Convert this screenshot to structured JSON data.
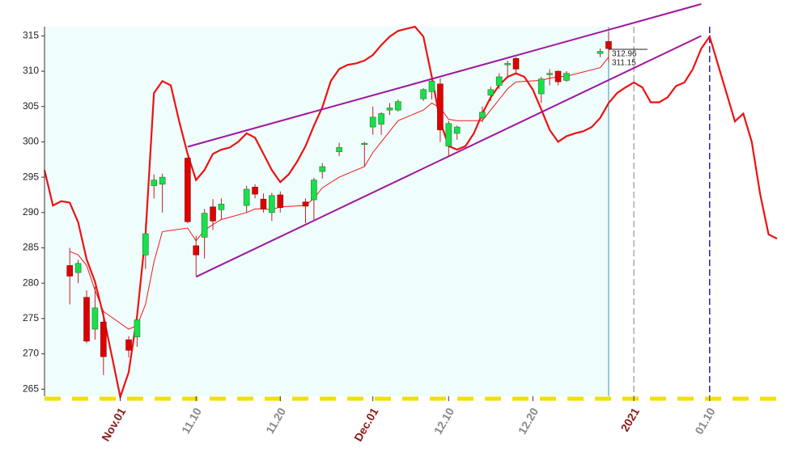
{
  "chart_data": {
    "type": "candlestick",
    "x": [
      "10.26",
      "10.27",
      "10.28",
      "10.29",
      "10.30",
      "11.02",
      "11.03",
      "11.04",
      "11.05",
      "11.06",
      "11.09",
      "11.10",
      "11.11",
      "11.12",
      "11.13",
      "11.16",
      "11.17",
      "11.18",
      "11.19",
      "11.20",
      "11.23",
      "11.24",
      "11.25",
      "11.27",
      "11.30",
      "12.01",
      "12.02",
      "12.03",
      "12.04",
      "12.07",
      "12.08",
      "12.09",
      "12.10",
      "12.11",
      "12.14",
      "12.15",
      "12.16",
      "12.17",
      "12.18",
      "12.21",
      "12.22",
      "12.23",
      "12.24",
      "12.28",
      "12.29"
    ],
    "open": [
      282.5,
      281.5,
      278,
      273.5,
      274.5,
      272,
      272.4,
      284,
      293.8,
      294,
      297.7,
      285.3,
      286.5,
      290.8,
      290.4,
      291,
      293.6,
      291.9,
      290,
      292.5,
      291.5,
      291.8,
      295.8,
      298.6,
      299.7,
      302.1,
      302.5,
      304.5,
      304.5,
      306.1,
      307.1,
      308.2,
      299.4,
      301.2,
      303.4,
      306.6,
      308,
      310.9,
      311.8,
      306.8,
      309.5,
      310,
      308.7,
      312.5,
      314.2
    ],
    "high": [
      285,
      283.3,
      279,
      279.5,
      276,
      272.5,
      275,
      288.5,
      295.4,
      295.5,
      297.8,
      286.7,
      290.5,
      291.9,
      292,
      293.8,
      294,
      292.7,
      292.8,
      293,
      292,
      294.9,
      297,
      299.9,
      300,
      305,
      304.2,
      305.5,
      306,
      307.6,
      309,
      309,
      303,
      302.3,
      305,
      307.8,
      309.7,
      311.5,
      312,
      309.2,
      310.3,
      310.1,
      310,
      313.2,
      315.5
    ],
    "low": [
      277,
      280,
      271.5,
      272,
      267,
      269.5,
      271,
      282,
      292,
      290,
      288.5,
      281,
      283.5,
      287.5,
      289,
      290,
      292,
      290,
      288.8,
      290,
      288.5,
      289,
      294.8,
      298,
      296.5,
      301,
      301,
      303.8,
      304.3,
      305.8,
      306,
      300,
      298,
      300.3,
      302.8,
      305.8,
      307.5,
      309,
      309.5,
      305.5,
      308,
      308,
      308.5,
      312,
      311.2
    ],
    "close": [
      281,
      282.8,
      271.8,
      276.5,
      269.6,
      270.5,
      274.8,
      287,
      294.6,
      295,
      288.7,
      284,
      289.9,
      288.8,
      291.2,
      293.3,
      292.6,
      290.5,
      292.4,
      290.7,
      290.9,
      294.6,
      296.5,
      299.2,
      299.8,
      303.5,
      304,
      304.8,
      305.7,
      307.4,
      308.6,
      301.7,
      302.6,
      302.1,
      304.2,
      307.4,
      309.2,
      311.1,
      310.3,
      308.9,
      309.7,
      308.5,
      309.7,
      312.8,
      313.2
    ],
    "up_color": "#19e04a",
    "down_color": "#e00000",
    "ma": {
      "color": "#f01818",
      "values": [
        284.5,
        284,
        282.5,
        279,
        276,
        273.5,
        274,
        277,
        283,
        287.3,
        287.8,
        286,
        287.5,
        288.3,
        289,
        290,
        290.5,
        290.5,
        290.4,
        290.8,
        291,
        292,
        293.5,
        295,
        296.5,
        298.5,
        300,
        301.5,
        303,
        304.5,
        305.5,
        304.8,
        303.2,
        303,
        303,
        304.5,
        306,
        307.5,
        308.5,
        308.7,
        309,
        309.2,
        309.3,
        310.5,
        312
      ]
    },
    "oscillator": {
      "color": "#ee1111",
      "x": [
        "10.23",
        "10.24",
        "10.25",
        "10.26",
        "10.27",
        "10.28",
        "10.29",
        "10.30",
        "10.31",
        "11.01",
        "11.02",
        "11.03",
        "11.04",
        "11.05",
        "11.06",
        "11.07",
        "11.08",
        "11.09",
        "11.10",
        "11.11",
        "11.12",
        "11.13",
        "11.14",
        "11.15",
        "11.16",
        "11.17",
        "11.18",
        "11.19",
        "11.20",
        "11.21",
        "11.22",
        "11.23",
        "11.24",
        "11.25",
        "11.26",
        "11.27",
        "11.28",
        "11.29",
        "11.30",
        "12.01",
        "12.02",
        "12.03",
        "12.04",
        "12.05",
        "12.06",
        "12.07",
        "12.08",
        "12.09",
        "12.10",
        "12.11",
        "12.12",
        "12.13",
        "12.14",
        "12.15",
        "12.16",
        "12.17",
        "12.18",
        "12.19",
        "12.20",
        "12.21",
        "12.22",
        "12.23",
        "12.24",
        "12.25",
        "12.26",
        "12.27",
        "12.28",
        "12.29",
        "12.30",
        "12.31",
        "01.01",
        "01.02",
        "01.03",
        "01.04",
        "01.05",
        "01.06",
        "01.07",
        "01.08",
        "01.09",
        "01.10",
        "01.11",
        "01.12",
        "01.13",
        "01.14",
        "01.15",
        "01.16",
        "01.17",
        "01.18"
      ],
      "values": [
        296,
        291,
        291.6,
        291.4,
        288.6,
        283.4,
        280.2,
        275.4,
        269.7,
        263.9,
        267.4,
        275.4,
        286.9,
        306.9,
        308.6,
        308,
        302.9,
        298.3,
        294.6,
        296,
        298.3,
        298.9,
        299.2,
        300,
        301.2,
        300.6,
        298.3,
        296,
        294.3,
        295.4,
        297.2,
        299.4,
        302.3,
        304.9,
        308.6,
        310.3,
        310.9,
        311.1,
        311.5,
        312.3,
        313.7,
        314.9,
        315.7,
        316,
        316.3,
        314.9,
        309.2,
        302.9,
        299.4,
        298.9,
        299.4,
        301.2,
        304,
        306.3,
        308,
        309.2,
        309.7,
        309.2,
        307.4,
        304.6,
        301.7,
        300,
        300.8,
        301.2,
        301.5,
        302.1,
        303.4,
        305.5,
        306.9,
        307.7,
        308.4,
        307.7,
        305.6,
        305.6,
        306.3,
        307.9,
        308.4,
        310.3,
        313.2,
        314.9,
        310.9,
        306.9,
        302.9,
        304,
        300,
        292.6,
        286.9,
        286.3
      ]
    },
    "trendlines": [
      {
        "color": "#a0169c",
        "x": [
          "11.09",
          "01.09"
        ],
        "values": [
          299.3,
          319.5
        ]
      },
      {
        "color": "#a0169c",
        "x": [
          "11.10",
          "01.09"
        ],
        "values": [
          280.9,
          315
        ]
      }
    ],
    "vlines": [
      {
        "x": "12.29",
        "color": "#2a9bb5",
        "dash": false
      },
      {
        "x": "01.01",
        "color": "#aaaaaa",
        "dash": true
      },
      {
        "x": "01.10",
        "color": "#2020c0",
        "dash": true
      }
    ],
    "annotations": [
      "312.96",
      "311.15"
    ],
    "background": "#effdfd",
    "xlim": [
      "10.23",
      "01.18"
    ],
    "xticks": [
      {
        "value": "11.01",
        "label": "Nov.01"
      },
      "11.10",
      "11.20",
      {
        "value": "12.01",
        "label": "Dec.01"
      },
      "12.10",
      "12.20",
      {
        "value": "01.01",
        "label": "2021"
      },
      "01.10"
    ],
    "ylim": [
      264,
      316.3
    ],
    "yticks": [
      265,
      270,
      275,
      280,
      285,
      290,
      295,
      300,
      305,
      310,
      315
    ]
  }
}
